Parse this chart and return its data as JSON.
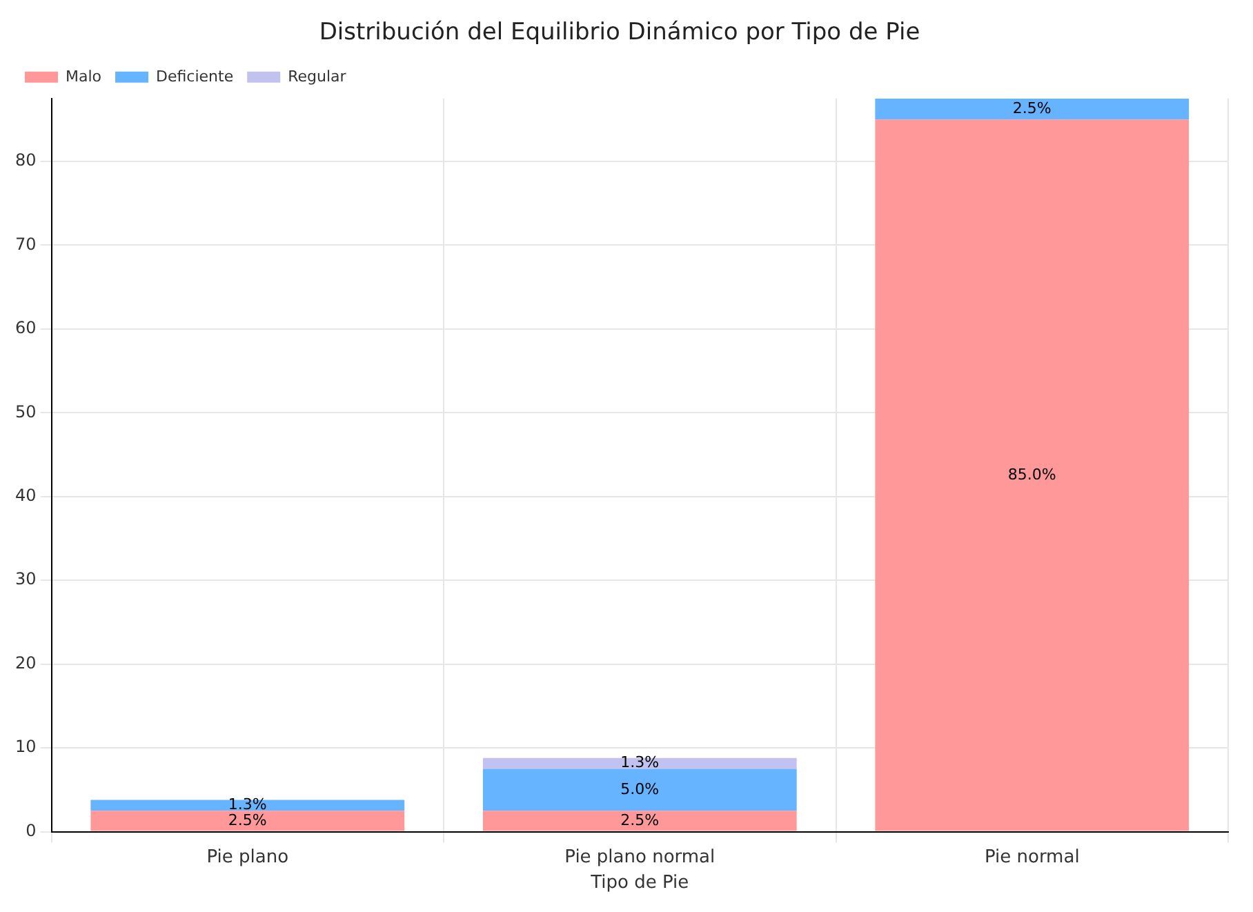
{
  "chart_data": {
    "type": "bar",
    "title": "Distribución del Equilibrio Dinámico por Tipo de Pie",
    "xlabel": "Tipo de Pie",
    "categories": [
      "Pie plano",
      "Pie plano normal",
      "Pie normal"
    ],
    "series": [
      {
        "name": "Malo",
        "color": "#ff9999",
        "values": [
          2.5,
          2.5,
          85.0
        ],
        "value_labels": [
          "2.5%",
          "2.5%",
          "85.0%"
        ]
      },
      {
        "name": "Deficiente",
        "color": "#66b3ff",
        "values": [
          1.3,
          5.0,
          2.5
        ],
        "value_labels": [
          "1.3%",
          "5.0%",
          "2.5%"
        ]
      },
      {
        "name": "Regular",
        "color": "#c2c2f0",
        "values": [
          0,
          1.3,
          0
        ],
        "value_labels": [
          null,
          "1.3%",
          null
        ]
      }
    ],
    "stacked": true,
    "ylim": [
      0,
      87.5
    ],
    "yticks": [
      0,
      10,
      20,
      30,
      40,
      50,
      60,
      70,
      80
    ],
    "grid": true,
    "legend": "top left"
  }
}
